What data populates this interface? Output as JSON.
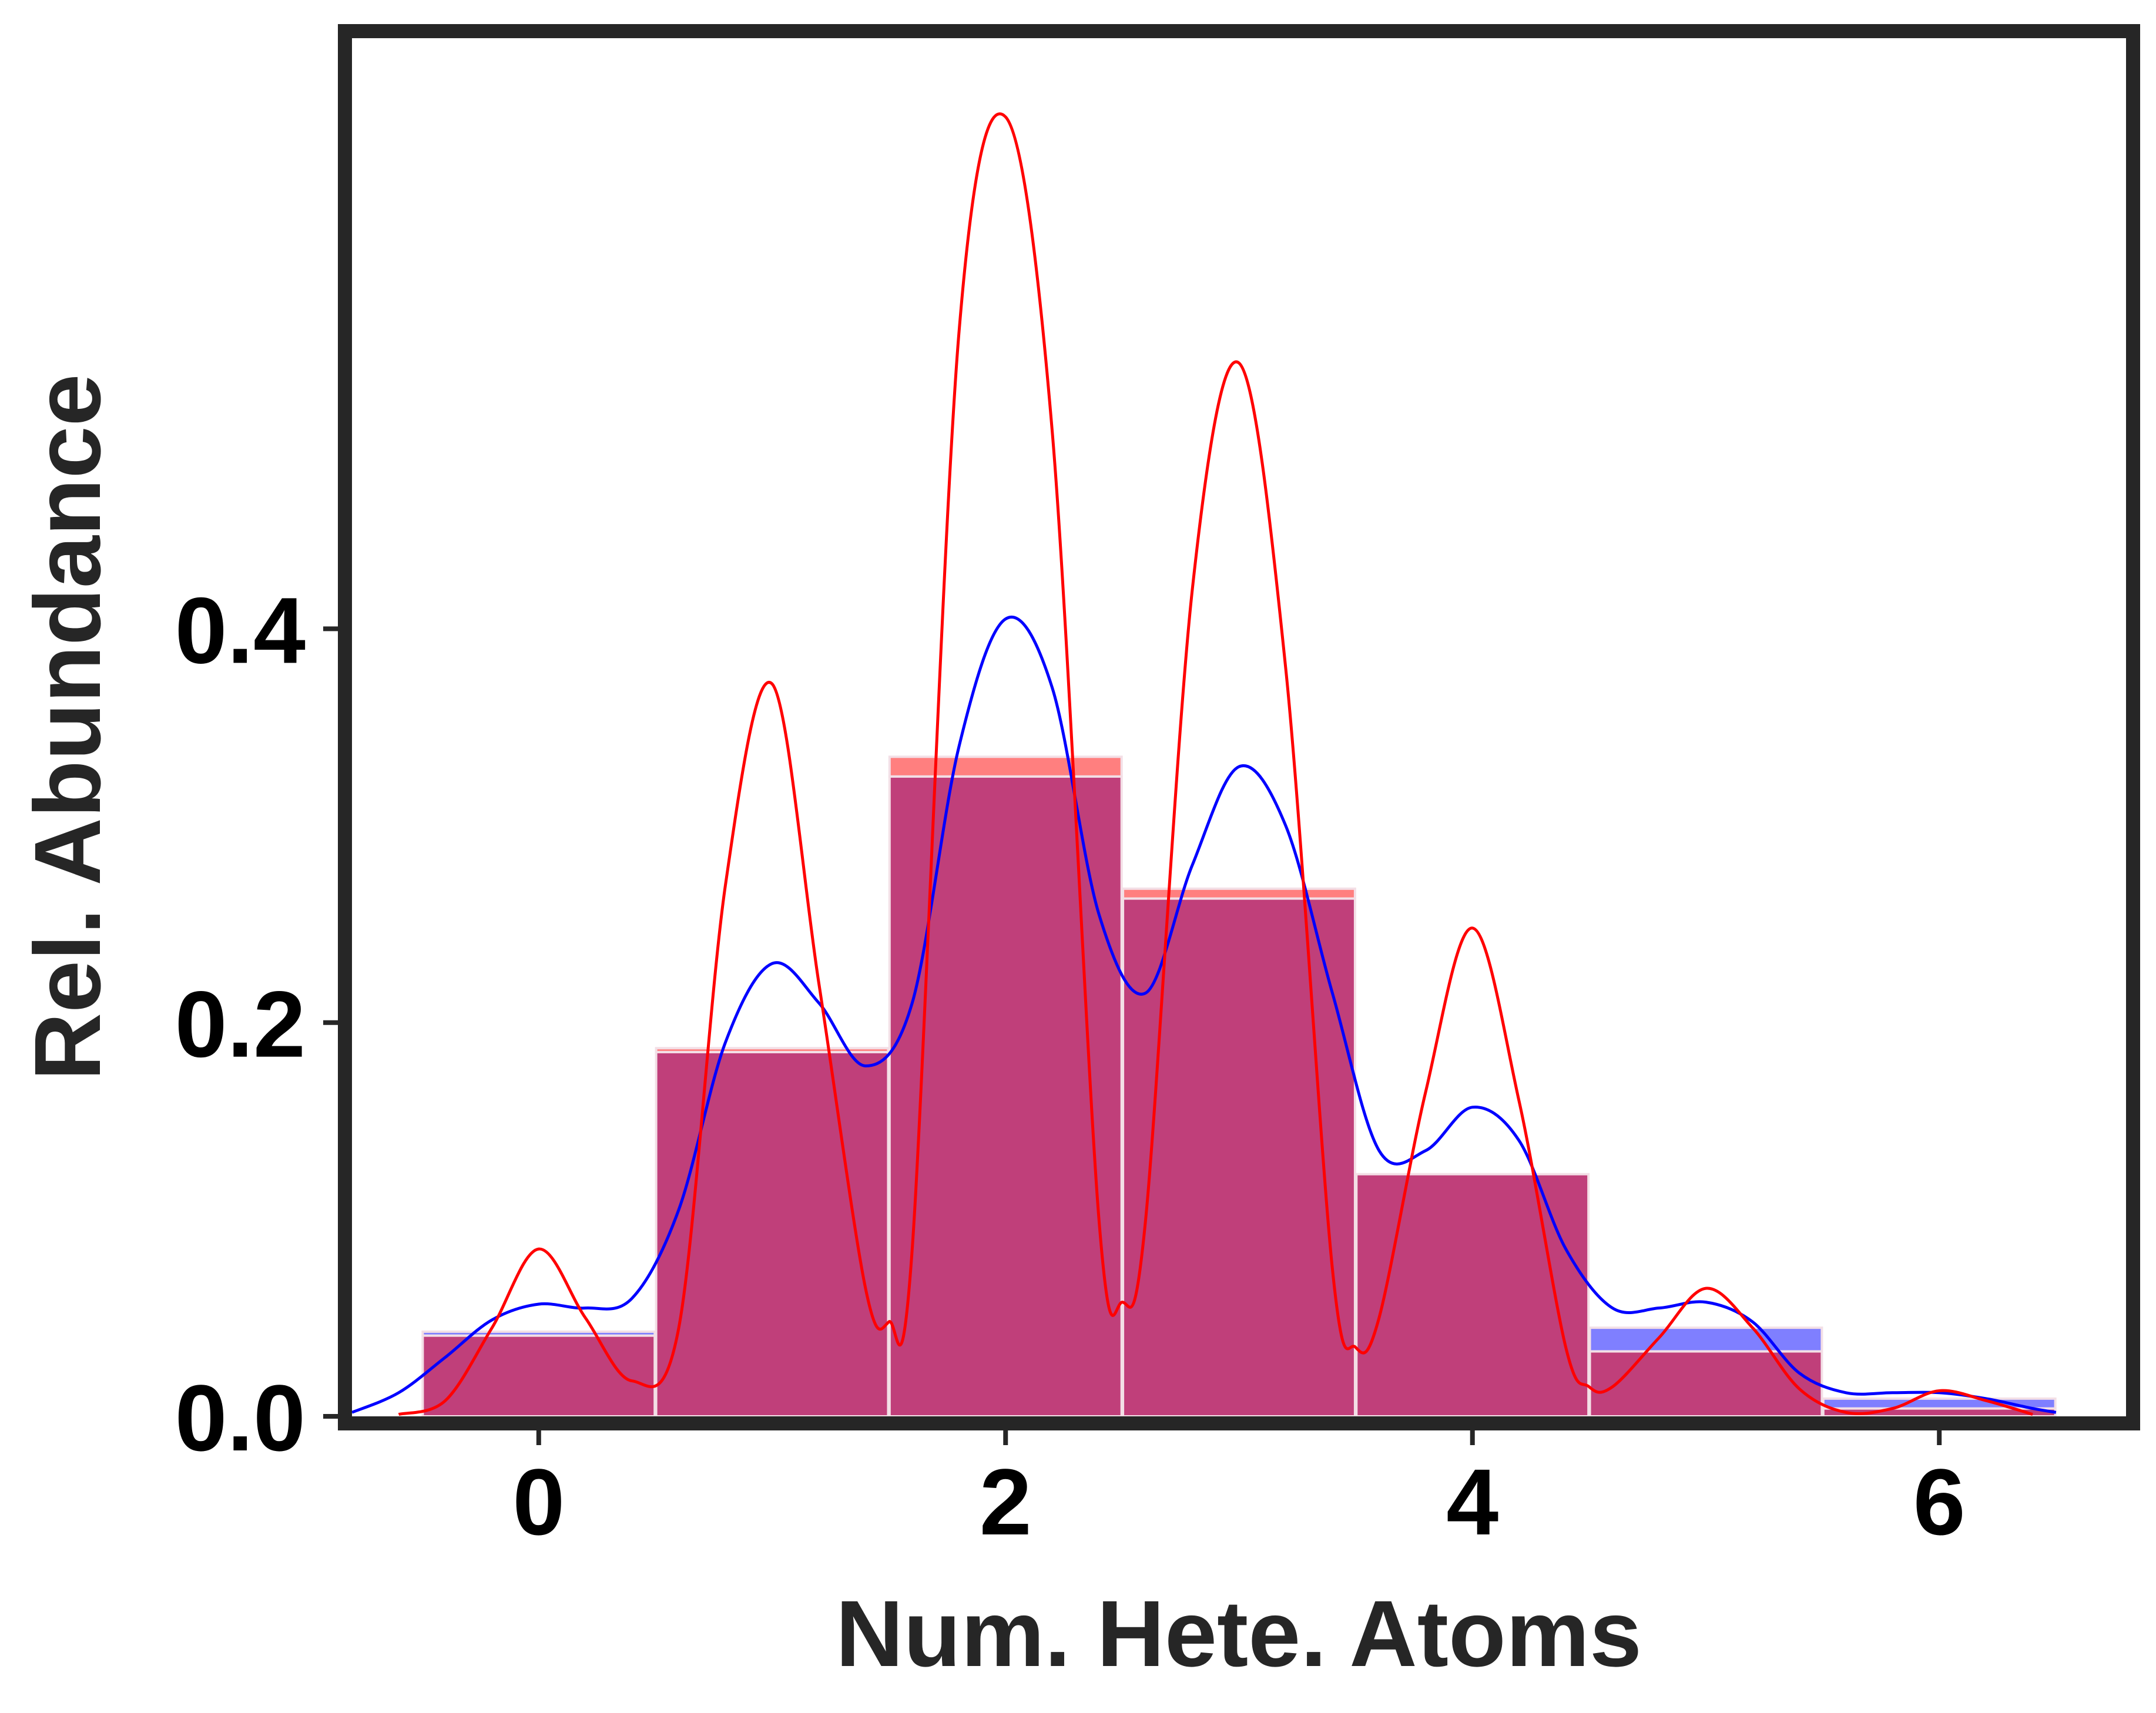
{
  "chart_data": {
    "type": "bar",
    "xlabel": "Num. Hete. Atoms",
    "ylabel": "Rel. Abundance",
    "xlim": [
      -0.8,
      6.8
    ],
    "ylim": [
      0.0,
      0.7
    ],
    "x_ticks": [
      "0",
      "2",
      "4",
      "6"
    ],
    "y_ticks": [
      "0.0",
      "0.2",
      "0.4"
    ],
    "grid": false,
    "categories": [
      0,
      1,
      2,
      3,
      4,
      5,
      6
    ],
    "histograms": [
      {
        "color": "#0000ff",
        "values": [
          0.043,
          0.185,
          0.325,
          0.263,
          0.123,
          0.045,
          0.009
        ]
      },
      {
        "color": "#ff0000",
        "values": [
          0.041,
          0.187,
          0.335,
          0.268,
          0.123,
          0.033,
          0.004
        ]
      }
    ],
    "overlap_color": "#c03f7a",
    "density_curves": [
      {
        "color": "#0000ff",
        "x": [
          -0.8,
          -0.6,
          -0.4,
          -0.2,
          0.0,
          0.2,
          0.4,
          0.6,
          0.8,
          1.0,
          1.2,
          1.4,
          1.6,
          1.8,
          2.0,
          2.2,
          2.4,
          2.6,
          2.8,
          3.0,
          3.2,
          3.4,
          3.6,
          3.8,
          4.0,
          4.2,
          4.4,
          4.6,
          4.8,
          5.0,
          5.2,
          5.4,
          5.6,
          5.8,
          6.0,
          6.2,
          6.4,
          6.5
        ],
        "y": [
          0.002,
          0.012,
          0.03,
          0.049,
          0.057,
          0.055,
          0.06,
          0.105,
          0.19,
          0.23,
          0.21,
          0.178,
          0.21,
          0.34,
          0.405,
          0.37,
          0.255,
          0.215,
          0.28,
          0.33,
          0.3,
          0.215,
          0.135,
          0.135,
          0.157,
          0.14,
          0.085,
          0.055,
          0.055,
          0.058,
          0.048,
          0.022,
          0.012,
          0.012,
          0.012,
          0.009,
          0.004,
          0.002
        ]
      },
      {
        "color": "#ff0000",
        "x": [
          -0.6,
          -0.4,
          -0.2,
          0.0,
          0.2,
          0.4,
          0.6,
          0.8,
          1.0,
          1.2,
          1.4,
          1.5,
          1.6,
          1.8,
          2.0,
          2.2,
          2.4,
          2.5,
          2.6,
          2.8,
          3.0,
          3.2,
          3.4,
          3.5,
          3.6,
          3.8,
          4.0,
          4.2,
          4.4,
          4.5,
          4.6,
          4.8,
          5.0,
          5.2,
          5.4,
          5.6,
          5.8,
          6.0,
          6.2,
          6.4
        ],
        "y": [
          0.001,
          0.008,
          0.045,
          0.085,
          0.05,
          0.018,
          0.045,
          0.27,
          0.372,
          0.22,
          0.065,
          0.048,
          0.085,
          0.55,
          0.66,
          0.5,
          0.1,
          0.058,
          0.1,
          0.42,
          0.535,
          0.38,
          0.075,
          0.035,
          0.05,
          0.165,
          0.248,
          0.16,
          0.035,
          0.015,
          0.015,
          0.04,
          0.065,
          0.045,
          0.014,
          0.002,
          0.004,
          0.013,
          0.008,
          0.001
        ]
      }
    ]
  }
}
